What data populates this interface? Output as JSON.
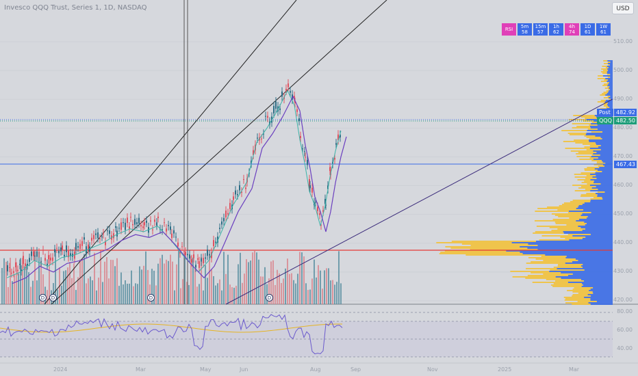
{
  "header": {
    "title": "Invesco QQQ Trust, Series 1, 1D, NASDAQ",
    "currency_button": "USD"
  },
  "rsi_table": [
    {
      "tf": "RSI",
      "val": "",
      "color": "#e040b8"
    },
    {
      "tf": "5m",
      "val": "58",
      "color": "#3a6be6"
    },
    {
      "tf": "15m",
      "val": "57",
      "color": "#3a6be6"
    },
    {
      "tf": "1h",
      "val": "62",
      "color": "#3a6be6"
    },
    {
      "tf": "4h",
      "val": "74",
      "color": "#e040b8"
    },
    {
      "tf": "1D",
      "val": "61",
      "color": "#3a6be6"
    },
    {
      "tf": "1W",
      "val": "61",
      "color": "#3a6be6"
    }
  ],
  "price_axis": [
    "510.00",
    "500.00",
    "490.00",
    "480.00",
    "470.00",
    "460.00",
    "450.00",
    "440.00",
    "430.00",
    "420.00"
  ],
  "tags": {
    "post_label": "Post",
    "post_price": "482.92",
    "symbol": "QQQ",
    "last_price": "482.50",
    "hline_price": "467.43"
  },
  "rsi_axis": [
    "80.00",
    "60.00",
    "40.00"
  ],
  "time_axis": [
    "2024",
    "Mar",
    "May",
    "Jun",
    "Aug",
    "Sep",
    "Nov",
    "2025",
    "Mar"
  ],
  "dividend_marks": [
    "D",
    "D",
    "D",
    "D"
  ],
  "colors": {
    "background": "#d6d8dd",
    "up": "#2e6e86",
    "down": "#e05260",
    "volume_profile_up": "#3a6be6",
    "volume_profile_down": "#f2c23c",
    "hline_red": "#e53935",
    "hline_blue": "#3a6be6",
    "rsi_line": "#6b5acd",
    "rsi_ma": "#e6b422"
  }
}
